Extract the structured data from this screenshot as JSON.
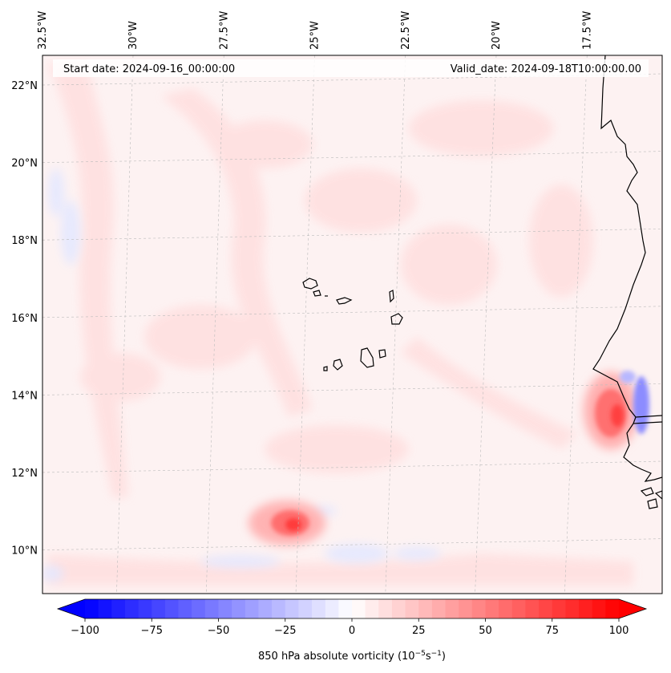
{
  "header": {
    "start_date": "Start date: 2024-09-16_00:00:00",
    "valid_date": "Valid_date: 2024-09-18T10:00:00.00"
  },
  "map": {
    "extent": {
      "lon": [
        -33.0,
        -14.3
      ],
      "lat": [
        8.8,
        22.8
      ]
    },
    "lon_ticks": [
      {
        "value": -32.5,
        "label": "32.5°W"
      },
      {
        "value": -30.0,
        "label": "30°W"
      },
      {
        "value": -27.5,
        "label": "27.5°W"
      },
      {
        "value": -25.0,
        "label": "25°W"
      },
      {
        "value": -22.5,
        "label": "22.5°W"
      },
      {
        "value": -20.0,
        "label": "20°W"
      },
      {
        "value": -17.5,
        "label": "17.5°W"
      }
    ],
    "lat_ticks": [
      {
        "value": 22,
        "label": "22°N"
      },
      {
        "value": 20,
        "label": "20°N"
      },
      {
        "value": 18,
        "label": "18°N"
      },
      {
        "value": 16,
        "label": "16°N"
      },
      {
        "value": 14,
        "label": "14°N"
      },
      {
        "value": 12,
        "label": "12°N"
      },
      {
        "value": 10,
        "label": "10°N"
      }
    ],
    "gridlines": true,
    "features": [
      "Cape Verde islands",
      "West African coastline"
    ]
  },
  "colorbar": {
    "cmap": "bwr",
    "min": -100,
    "max": 100,
    "levels": 41,
    "extend": "both",
    "ticks": [
      {
        "value": -100,
        "label": "−100"
      },
      {
        "value": -75,
        "label": "−75"
      },
      {
        "value": -50,
        "label": "−50"
      },
      {
        "value": -25,
        "label": "−25"
      },
      {
        "value": 0,
        "label": "0"
      },
      {
        "value": 25,
        "label": "25"
      },
      {
        "value": 50,
        "label": "50"
      },
      {
        "value": 75,
        "label": "75"
      },
      {
        "value": 100,
        "label": "100"
      }
    ],
    "label": "850 hPa absolute vorticity (10",
    "label_sup1": "−5",
    "label_mid": "s",
    "label_sup2": "−1",
    "label_end": ")"
  },
  "colors": {
    "negative": "#0000ff",
    "neutral": "#ffffff",
    "positive": "#ff0000",
    "coastline": "#000000",
    "grid": "#bbbbbb"
  }
}
